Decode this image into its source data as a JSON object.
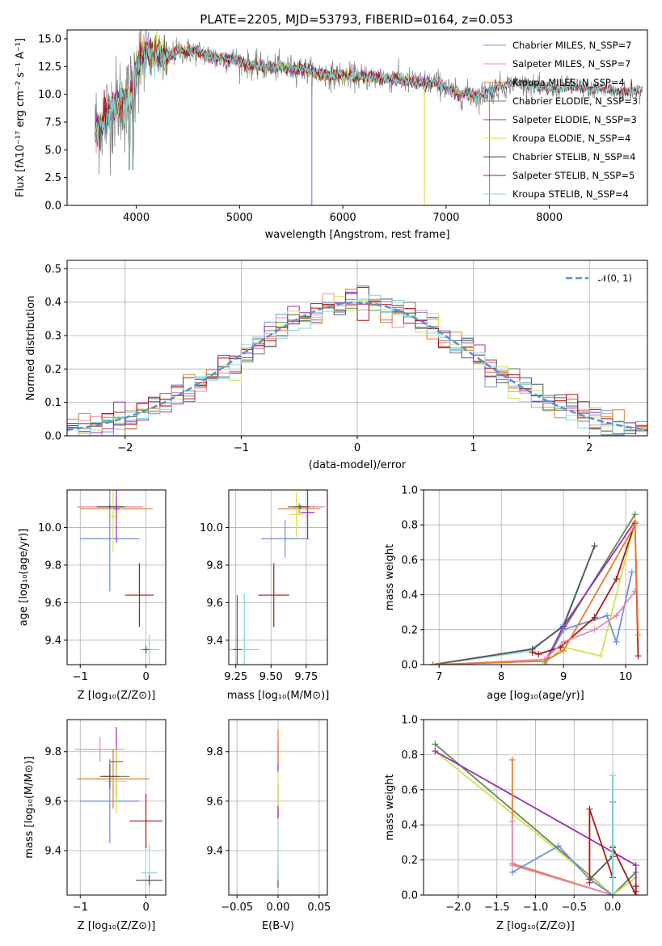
{
  "colors": {
    "chabrier_miles": "#6f8fd8",
    "salpeter_miles": "#e889b6",
    "kroupa_miles": "#e87a2c",
    "chabrier_elodie": "#5f875a",
    "salpeter_elodie": "#9c2cb4",
    "kroupa_elodie": "#cfe34a",
    "chabrier_stelib": "#555555",
    "salpeter_stelib": "#b01515",
    "kroupa_stelib": "#7fd8d8",
    "gray_spectrum": "#808080",
    "normal_curve": "#5b8fd6"
  },
  "chart_data": [
    {
      "id": "spectrum",
      "type": "line",
      "title": "PLATE=2205, MJD=53793, FIBERID=0164, z=0.053",
      "xlabel": "wavelength [Angstrom, rest frame]",
      "ylabel": "Flux [fλ10⁻¹⁷ erg cm⁻² s⁻¹ A⁻¹]",
      "xlim": [
        3330,
        8950
      ],
      "ylim": [
        0,
        15.8
      ],
      "xticks": [
        4000,
        5000,
        6000,
        7000,
        8000
      ],
      "yticks": [
        0.0,
        2.5,
        5.0,
        7.5,
        10.0,
        12.5,
        15.0
      ],
      "ytick_labels": [
        "0.0",
        "2.5",
        "5.0",
        "7.5",
        "10.0",
        "12.5",
        "15.0"
      ],
      "grid": false,
      "legend_position": "top-right",
      "legend": [
        "Chabrier MILES, N_SSP=7",
        "Salpeter MILES, N_SSP=7",
        "Kroupa MILES, N_SSP=4",
        "Chabrier ELODIE, N_SSP=3",
        "Salpeter ELODIE, N_SSP=3",
        "Kroupa ELODIE, N_SSP=4",
        "Chabrier STELIB, N_SSP=4",
        "Salpeter STELIB, N_SSP=5",
        "Kroupa STELIB, N_SSP=4"
      ],
      "continuum": {
        "x": [
          3600,
          3650,
          3700,
          3750,
          3800,
          3850,
          3900,
          3950,
          4000,
          4100,
          4200,
          4300,
          4400,
          4500,
          4600,
          4700,
          4800,
          4900,
          5000,
          5100,
          5200,
          5300,
          5400,
          5500,
          5600,
          5700,
          5800,
          5900,
          6000,
          6100,
          6200,
          6300,
          6400,
          6500,
          6600,
          6700,
          6800,
          6900,
          7000,
          7100,
          7200,
          7300,
          7400,
          7500,
          7600,
          7700,
          7800,
          7900,
          8000,
          8100,
          8200,
          8300,
          8400,
          8500,
          8600,
          8700,
          8800,
          8900
        ],
        "y": [
          7.0,
          7.4,
          7.9,
          8.5,
          9.0,
          9.5,
          9.0,
          10.0,
          12.5,
          13.8,
          13.6,
          13.2,
          13.9,
          13.9,
          13.8,
          13.5,
          13.2,
          13.2,
          13.0,
          12.6,
          12.5,
          12.4,
          12.5,
          12.3,
          12.3,
          12.0,
          11.8,
          11.7,
          11.7,
          11.6,
          11.6,
          11.5,
          11.4,
          11.4,
          11.2,
          11.1,
          11.0,
          11.1,
          10.6,
          10.0,
          10.0,
          9.8,
          10.2,
          10.6,
          10.9,
          11.0,
          10.9,
          10.6,
          10.5,
          10.6,
          10.8,
          10.6,
          10.4,
          10.5,
          10.3,
          10.2,
          10.3,
          10.4
        ]
      }
    },
    {
      "id": "residual_hist",
      "type": "line",
      "xlabel": "(data-model)/error",
      "ylabel": "Normed distribution",
      "xlim": [
        -2.5,
        2.5
      ],
      "ylim": [
        0,
        0.525
      ],
      "xticks": [
        -2,
        -1,
        0,
        1,
        2
      ],
      "xtick_labels": [
        "−2",
        "−1",
        "0",
        "1",
        "2"
      ],
      "yticks": [
        0.0,
        0.1,
        0.2,
        0.3,
        0.4,
        0.5
      ],
      "ytick_labels": [
        "0.0",
        "0.1",
        "0.2",
        "0.3",
        "0.4",
        "0.5"
      ],
      "grid": true,
      "legend_position": "top-right",
      "legend": [
        "𝒩(0, 1)"
      ],
      "bin_width": 0.1
    },
    {
      "id": "age_vs_Z",
      "type": "scatter",
      "xlabel": "Z [log₁₀(Z/Z⊙)]",
      "ylabel": "age  [log₁₀(age/yr)]",
      "xlim": [
        -1.2,
        0.3
      ],
      "ylim": [
        9.27,
        10.2
      ],
      "xticks": [
        -1,
        0
      ],
      "xtick_labels": [
        "−1",
        "0"
      ],
      "yticks": [
        9.4,
        9.6,
        9.8,
        10.0
      ],
      "ytick_labels": [
        "9.4",
        "9.6",
        "9.8",
        "10.0"
      ],
      "grid": true,
      "points": [
        {
          "key": "chabrier_miles",
          "x": -0.55,
          "xerr": 0.45,
          "y": 9.94,
          "yerr": 0.28
        },
        {
          "key": "salpeter_miles",
          "x": -0.55,
          "xerr": 0.5,
          "y": 10.11,
          "yerr": 0.01
        },
        {
          "key": "kroupa_miles",
          "x": -0.45,
          "xerr": 0.55,
          "y": 10.1,
          "yerr": 0.05
        },
        {
          "key": "chabrier_elodie",
          "x": -0.45,
          "xerr": 0.15,
          "y": 10.11,
          "yerr": 0.01
        },
        {
          "key": "salpeter_elodie",
          "x": -0.45,
          "xerr": 0.05,
          "y": 10.1,
          "yerr": 0.18
        },
        {
          "key": "kroupa_elodie",
          "x": -0.5,
          "xerr": 0.08,
          "y": 10.06,
          "yerr": 0.19
        },
        {
          "key": "chabrier_stelib",
          "x": -0.55,
          "xerr": 0.2,
          "y": 10.11,
          "yerr": 0.01
        },
        {
          "key": "salpeter_stelib",
          "x": -0.1,
          "xerr": 0.22,
          "y": 9.64,
          "yerr": 0.17
        },
        {
          "key": "kroupa_stelib",
          "x": 0.05,
          "xerr": 0.15,
          "y": 9.35,
          "yerr": 0.08
        },
        {
          "key": "chabrier_stelib",
          "x": 0.0,
          "xerr": 0.05,
          "y": 9.35,
          "yerr": 0.02
        }
      ]
    },
    {
      "id": "age_vs_mass",
      "type": "scatter",
      "xlabel": "mass [log₁₀(M/M⊙)]",
      "ylabel": "",
      "xlim": [
        9.2,
        9.9
      ],
      "ylim": [
        9.27,
        10.2
      ],
      "xticks": [
        9.25,
        9.5,
        9.75
      ],
      "xtick_labels": [
        "9.25",
        "9.50",
        "9.75"
      ],
      "yticks": [
        9.4,
        9.6,
        9.8,
        10.0
      ],
      "ytick_labels": [
        "9.4",
        "9.6",
        "9.8",
        "10.0"
      ],
      "grid": true,
      "points": [
        {
          "key": "chabrier_miles",
          "x": 9.6,
          "xerr": 0.17,
          "y": 9.94,
          "yerr": 0.1
        },
        {
          "key": "salpeter_miles",
          "x": 9.8,
          "xerr": 0.08,
          "y": 10.11,
          "yerr": 0.01
        },
        {
          "key": "kroupa_miles",
          "x": 9.7,
          "xerr": 0.15,
          "y": 10.1,
          "yerr": 0.03
        },
        {
          "key": "chabrier_elodie",
          "x": 9.7,
          "xerr": 0.08,
          "y": 10.11,
          "yerr": 0.01
        },
        {
          "key": "salpeter_elodie",
          "x": 9.76,
          "xerr": 0.05,
          "y": 10.08,
          "yerr": 0.14
        },
        {
          "key": "kroupa_elodie",
          "x": 9.68,
          "xerr": 0.05,
          "y": 10.07,
          "yerr": 0.12
        },
        {
          "key": "chabrier_stelib",
          "x": 9.71,
          "xerr": 0.05,
          "y": 10.11,
          "yerr": 0.01
        },
        {
          "key": "salpeter_stelib",
          "x": 9.52,
          "xerr": 0.11,
          "y": 9.64,
          "yerr": 0.17
        },
        {
          "key": "kroupa_stelib",
          "x": 9.31,
          "xerr": 0.11,
          "y": 9.35,
          "yerr": 0.3
        },
        {
          "key": "chabrier_stelib",
          "x": 9.26,
          "xerr": 0.03,
          "y": 9.35,
          "yerr": 0.29
        }
      ]
    },
    {
      "id": "massweight_vs_age",
      "type": "line",
      "xlabel": "age  [log₁₀(age/yr)]",
      "ylabel": "mass weight",
      "xlim": [
        6.75,
        10.35
      ],
      "ylim": [
        0,
        1.0
      ],
      "xticks": [
        7,
        8,
        9,
        10
      ],
      "xtick_labels": [
        "7",
        "8",
        "9",
        "10"
      ],
      "yticks": [
        0.0,
        0.2,
        0.4,
        0.6,
        0.8,
        1.0
      ],
      "ytick_labels": [
        "0.0",
        "0.2",
        "0.4",
        "0.6",
        "0.8",
        "1.0"
      ],
      "grid": true,
      "series": [
        {
          "key": "kroupa_stelib",
          "x": [
            6.9,
            8.5,
            9.0,
            9.5
          ],
          "y": [
            0.0,
            0.08,
            0.23,
            0.68
          ]
        },
        {
          "key": "chabrier_stelib",
          "x": [
            6.9,
            8.5,
            9.0,
            9.5
          ],
          "y": [
            0.0,
            0.09,
            0.22,
            0.68
          ]
        },
        {
          "key": "chabrier_elodie",
          "x": [
            8.7,
            9.0,
            10.15
          ],
          "y": [
            0.02,
            0.2,
            0.86
          ]
        },
        {
          "key": "salpeter_elodie",
          "x": [
            8.7,
            9.0,
            10.15
          ],
          "y": [
            0.01,
            0.22,
            0.82
          ]
        },
        {
          "key": "kroupa_elodie",
          "x": [
            8.7,
            9.0,
            9.6,
            10.15
          ],
          "y": [
            0.01,
            0.1,
            0.05,
            0.82
          ]
        },
        {
          "key": "chabrier_miles",
          "x": [
            8.7,
            9.0,
            9.7,
            9.85,
            10.1
          ],
          "y": [
            0.0,
            0.2,
            0.28,
            0.13,
            0.53
          ]
        },
        {
          "key": "salpeter_stelib",
          "x": [
            8.5,
            8.6,
            8.95,
            9.5,
            9.85,
            10.15,
            10.2
          ],
          "y": [
            0.07,
            0.06,
            0.1,
            0.27,
            0.49,
            0.81,
            0.05
          ]
        },
        {
          "key": "salpeter_miles",
          "x": [
            7.0,
            8.7,
            9.0,
            9.5,
            9.85,
            10.15
          ],
          "y": [
            0.0,
            0.03,
            0.13,
            0.2,
            0.28,
            0.42
          ]
        },
        {
          "key": "kroupa_miles",
          "x": [
            6.9,
            8.7,
            9.0,
            10.15,
            10.2
          ],
          "y": [
            0.0,
            0.02,
            0.08,
            0.8,
            0.17
          ]
        }
      ]
    },
    {
      "id": "mass_vs_Z",
      "type": "scatter",
      "xlabel": "Z [log₁₀(Z/Z⊙)]",
      "ylabel": "mass [log₁₀(M/M⊙)]",
      "xlim": [
        -1.2,
        0.3
      ],
      "ylim": [
        9.22,
        9.93
      ],
      "xticks": [
        -1,
        0
      ],
      "xtick_labels": [
        "−1",
        "0"
      ],
      "yticks": [
        9.4,
        9.6,
        9.8
      ],
      "ytick_labels": [
        "9.4",
        "9.6",
        "9.8"
      ],
      "grid": true,
      "points": [
        {
          "key": "chabrier_miles",
          "x": -0.55,
          "xerr": 0.45,
          "y": 9.6,
          "yerr": 0.17
        },
        {
          "key": "salpeter_miles",
          "x": -0.7,
          "xerr": 0.38,
          "y": 9.81,
          "yerr": 0.05
        },
        {
          "key": "kroupa_miles",
          "x": -0.5,
          "xerr": 0.55,
          "y": 9.69,
          "yerr": 0.12
        },
        {
          "key": "chabrier_elodie",
          "x": -0.45,
          "xerr": 0.2,
          "y": 9.7,
          "yerr": 0.08
        },
        {
          "key": "salpeter_elodie",
          "x": -0.45,
          "xerr": 0.1,
          "y": 9.76,
          "yerr": 0.14
        },
        {
          "key": "kroupa_elodie",
          "x": -0.45,
          "xerr": 0.15,
          "y": 9.68,
          "yerr": 0.13
        },
        {
          "key": "chabrier_stelib",
          "x": -0.55,
          "xerr": 0.15,
          "y": 9.7,
          "yerr": 0.05
        },
        {
          "key": "salpeter_stelib",
          "x": 0.0,
          "xerr": 0.25,
          "y": 9.52,
          "yerr": 0.11
        },
        {
          "key": "kroupa_stelib",
          "x": 0.05,
          "xerr": 0.12,
          "y": 9.31,
          "yerr": 0.12
        },
        {
          "key": "chabrier_stelib",
          "x": 0.05,
          "xerr": 0.2,
          "y": 9.28,
          "yerr": 0.02
        }
      ]
    },
    {
      "id": "mass_vs_ebv",
      "type": "scatter",
      "xlabel": "E(B-V)",
      "ylabel": "",
      "xlim": [
        -0.06,
        0.06
      ],
      "ylim": [
        9.22,
        9.93
      ],
      "xticks": [
        -0.05,
        0.0,
        0.05
      ],
      "xtick_labels": [
        "−0.05",
        "0.00",
        "0.05"
      ],
      "yticks": [
        9.4,
        9.6,
        9.8
      ],
      "ytick_labels": [
        "9.4",
        "9.6",
        "9.8"
      ],
      "grid": true,
      "points": [
        {
          "key": "chabrier_stelib",
          "x": 0.0,
          "xerr": 0.0,
          "y": 9.3,
          "yerr": 0.05
        },
        {
          "key": "kroupa_stelib",
          "x": 0.0,
          "xerr": 0.0,
          "y": 9.4,
          "yerr": 0.12
        },
        {
          "key": "salpeter_stelib",
          "x": 0.0,
          "xerr": 0.0,
          "y": 9.6,
          "yerr": 0.07
        },
        {
          "key": "kroupa_elodie",
          "x": 0.0,
          "xerr": 0.0,
          "y": 9.68,
          "yerr": 0.1
        },
        {
          "key": "salpeter_elodie",
          "x": 0.0,
          "xerr": 0.0,
          "y": 9.78,
          "yerr": 0.06
        },
        {
          "key": "kroupa_miles",
          "x": 0.0,
          "xerr": 0.0,
          "y": 9.82,
          "yerr": 0.07
        }
      ]
    },
    {
      "id": "massweight_vs_Z",
      "type": "line",
      "xlabel": "Z [log₁₀(Z/Z⊙)]",
      "ylabel": "mass weight",
      "xlim": [
        -2.45,
        0.45
      ],
      "ylim": [
        0,
        1.0
      ],
      "xticks": [
        -2.0,
        -1.5,
        -1.0,
        -0.5,
        0.0
      ],
      "xtick_labels": [
        "−2.0",
        "−1.5",
        "−1.0",
        "−0.5",
        "0.0"
      ],
      "yticks": [
        0.0,
        0.2,
        0.4,
        0.6,
        0.8,
        1.0
      ],
      "ytick_labels": [
        "0.0",
        "0.2",
        "0.4",
        "0.6",
        "0.8",
        "1.0"
      ],
      "grid": true,
      "series": [
        {
          "key": "chabrier_elodie",
          "x": [
            -2.3,
            0.0,
            0.3
          ],
          "y": [
            0.86,
            0.0,
            0.13
          ]
        },
        {
          "key": "kroupa_elodie",
          "x": [
            -2.3,
            0.0,
            0.3
          ],
          "y": [
            0.82,
            0.0,
            0.1
          ]
        },
        {
          "key": "salpeter_elodie",
          "x": [
            -2.3,
            0.3,
            0.3
          ],
          "y": [
            0.82,
            0.17,
            0.02
          ]
        },
        {
          "key": "kroupa_miles",
          "x": [
            -1.3,
            -1.3,
            0.0,
            0.0
          ],
          "y": [
            0.77,
            0.18,
            0.0,
            0.25
          ]
        },
        {
          "key": "salpeter_miles",
          "x": [
            -1.3,
            -1.3,
            0.0,
            0.0
          ],
          "y": [
            0.42,
            0.17,
            0.0,
            0.28
          ]
        },
        {
          "key": "chabrier_miles",
          "x": [
            -1.3,
            -0.7,
            -0.3,
            0.0,
            0.0
          ],
          "y": [
            0.13,
            0.28,
            0.09,
            0.0,
            0.53
          ]
        },
        {
          "key": "salpeter_stelib",
          "x": [
            -0.3,
            -0.3,
            0.0,
            0.0,
            0.3,
            0.3
          ],
          "y": [
            0.07,
            0.49,
            0.1,
            0.27,
            0.0,
            0.05
          ]
        },
        {
          "key": "chabrier_stelib",
          "x": [
            -0.3,
            0.0,
            0.0
          ],
          "y": [
            0.09,
            0.22,
            0.68
          ]
        },
        {
          "key": "kroupa_stelib",
          "x": [
            0.0,
            0.0,
            0.0
          ],
          "y": [
            0.0,
            0.68,
            0.23
          ]
        }
      ]
    }
  ]
}
